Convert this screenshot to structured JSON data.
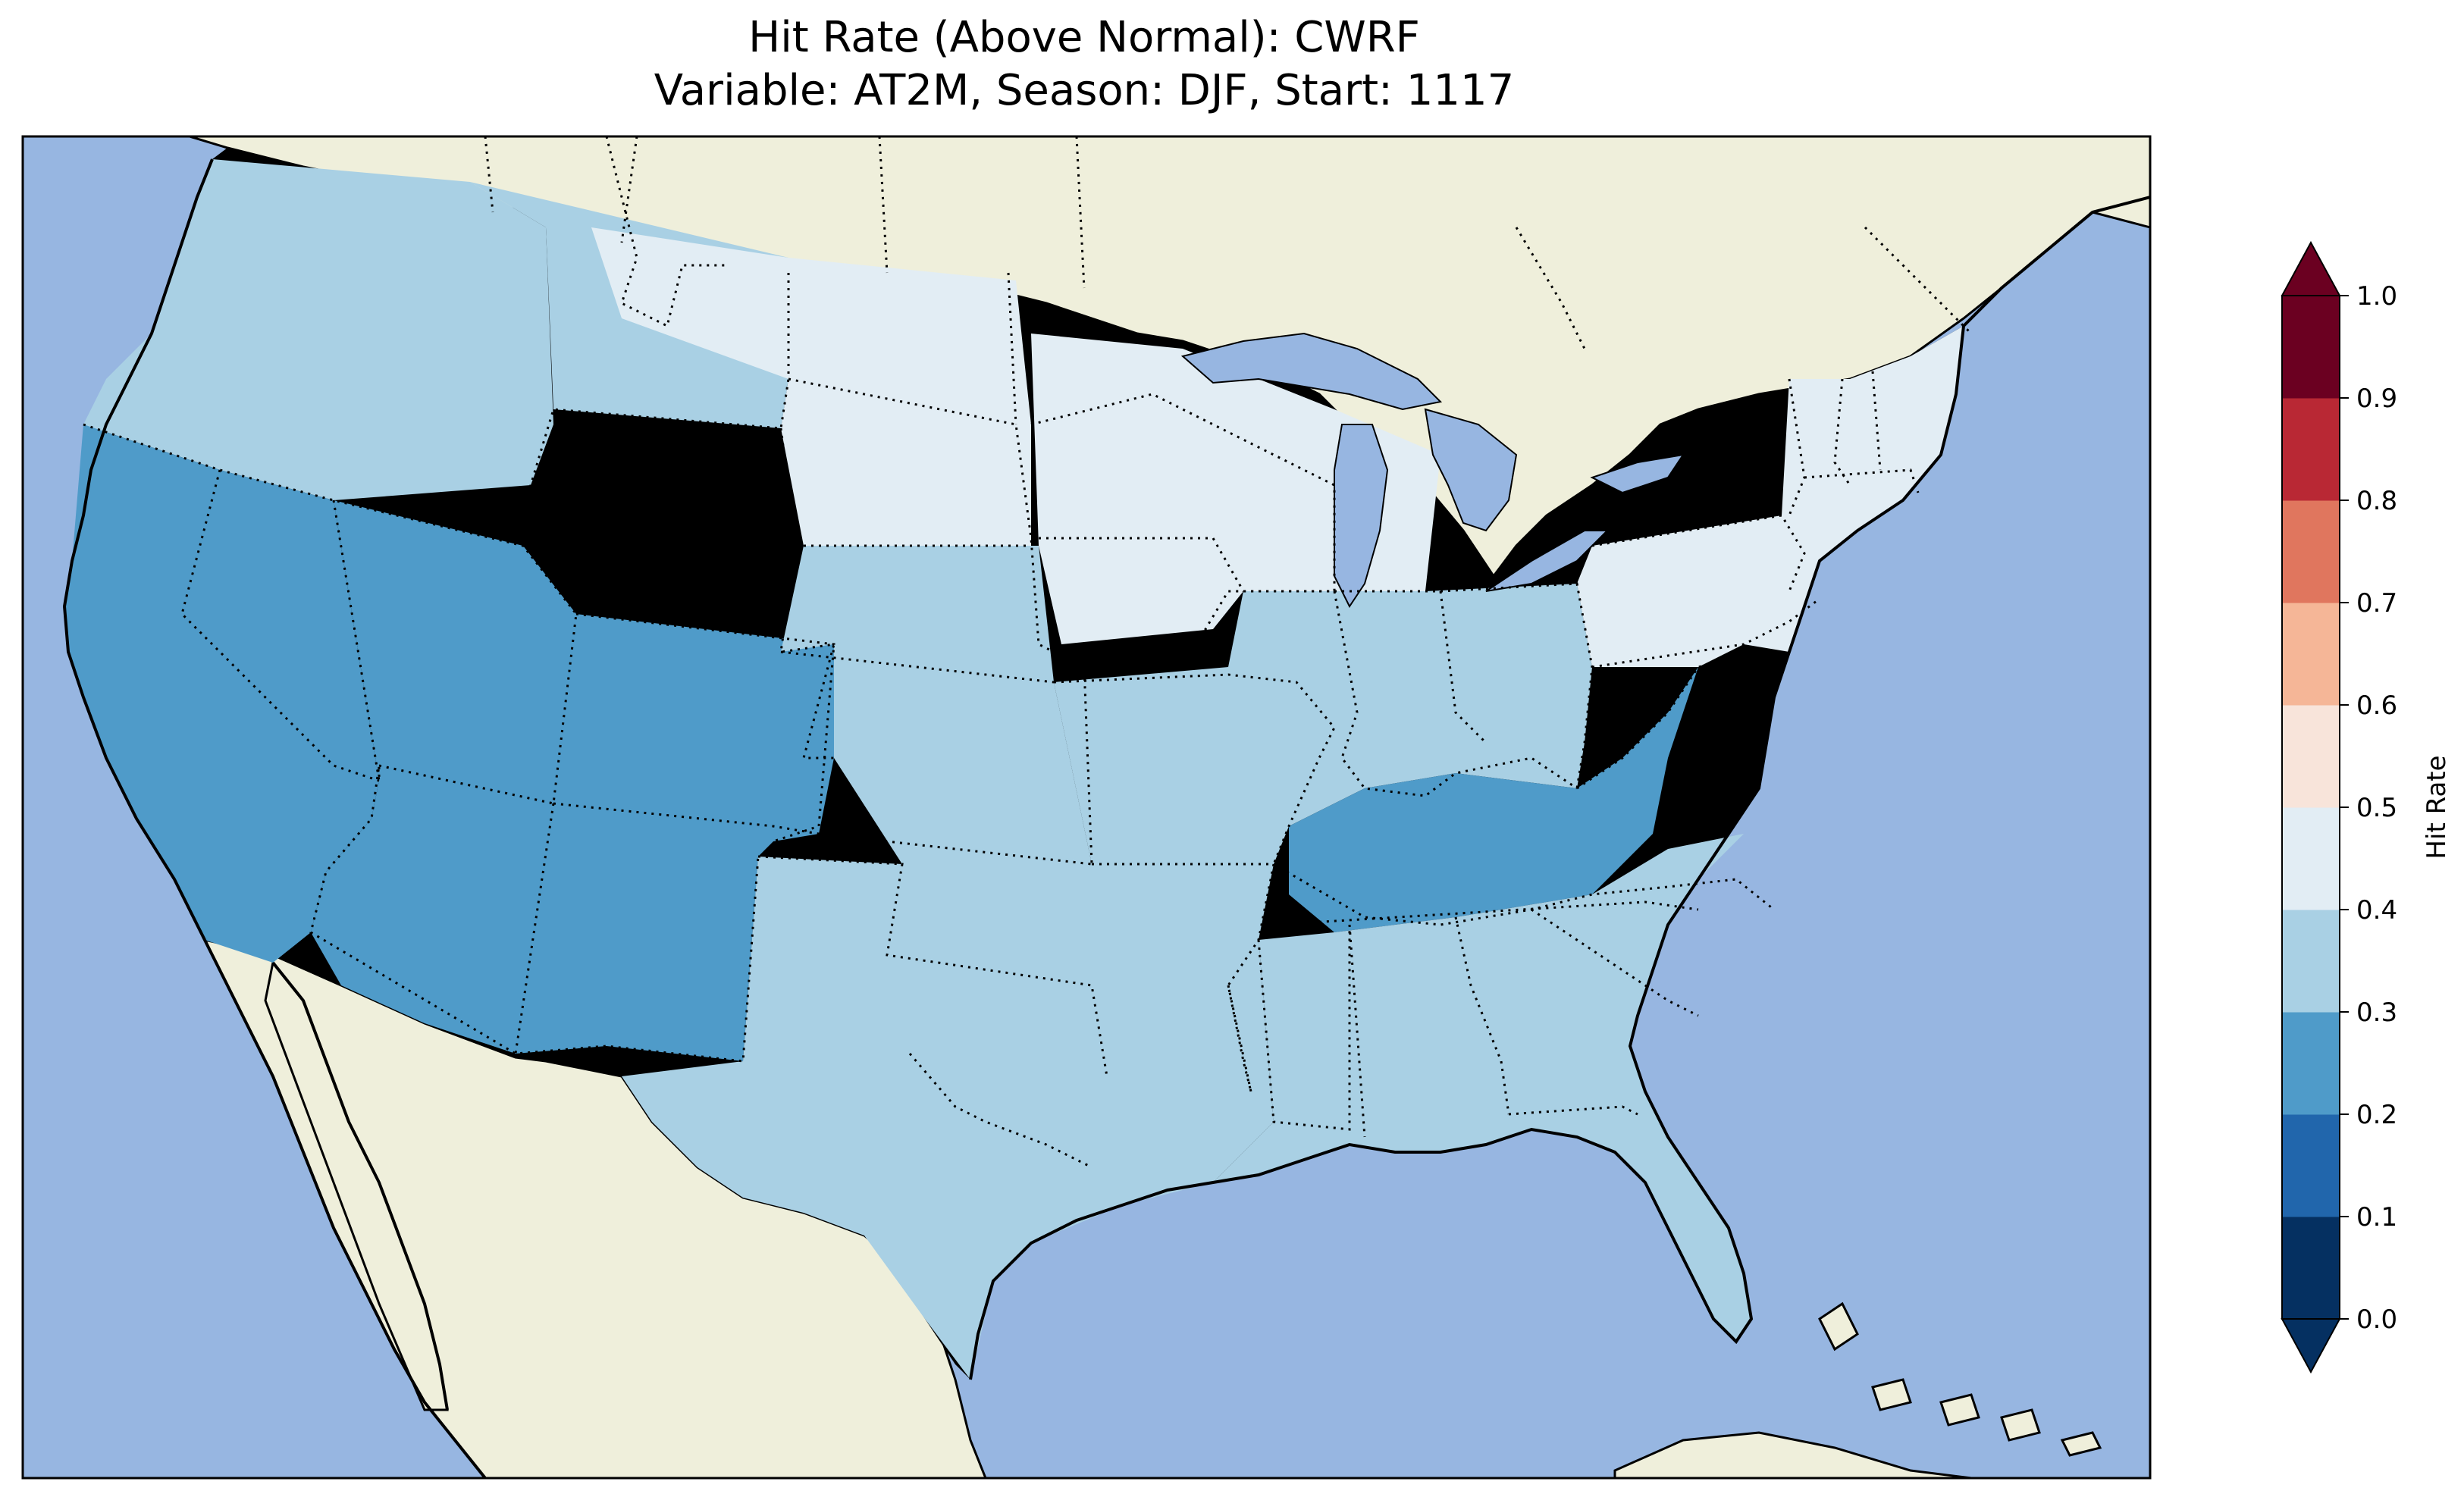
{
  "title": {
    "line1": "Hit Rate (Above Normal): CWRF",
    "line2": "Variable: AT2M, Season: DJF, Start: 1117"
  },
  "map": {
    "region": "Continental United States",
    "ocean_color": "#97b6e1",
    "land_color": "#efefdb",
    "lake_color": "#97b6e1",
    "border_style": "dotted state lines, solid coastlines"
  },
  "colorbar": {
    "label": "Hit Rate",
    "ticks": [
      "0.0",
      "0.1",
      "0.2",
      "0.3",
      "0.4",
      "0.5",
      "0.6",
      "0.7",
      "0.8",
      "0.9",
      "1.0"
    ],
    "colors": [
      "#053061",
      "#2166ac",
      "#4393c3",
      "#92c5de",
      "#d1e5f0",
      "#fddbc7",
      "#f4a582",
      "#d6604d",
      "#b2182b",
      "#67001f"
    ],
    "bins": [
      {
        "range": [
          0.0,
          0.1
        ],
        "color": "#053061"
      },
      {
        "range": [
          0.1,
          0.2
        ],
        "color": "#2166ac"
      },
      {
        "range": [
          0.2,
          0.3
        ],
        "color": "#4f9bc9"
      },
      {
        "range": [
          0.3,
          0.4
        ],
        "color": "#a9d0e4"
      },
      {
        "range": [
          0.4,
          0.5
        ],
        "color": "#e2edf4"
      },
      {
        "range": [
          0.5,
          0.6
        ],
        "color": "#f8e4da"
      },
      {
        "range": [
          0.6,
          0.7
        ],
        "color": "#f5b697"
      },
      {
        "range": [
          0.7,
          0.8
        ],
        "color": "#e0765e"
      },
      {
        "range": [
          0.8,
          0.9
        ],
        "color": "#b92834"
      },
      {
        "range": [
          0.9,
          1.0
        ],
        "color": "#6b0021"
      }
    ],
    "extend": "both"
  },
  "regions": [
    {
      "name": "Pacific Northwest",
      "value_bin": "0.3-0.4"
    },
    {
      "name": "Northern Rockies",
      "value_bin": "0.3-0.4"
    },
    {
      "name": "Northern Plains",
      "value_bin": "0.4-0.5"
    },
    {
      "name": "Upper Midwest",
      "value_bin": "0.4-0.5"
    },
    {
      "name": "California / Great Basin",
      "value_bin": "0.2-0.3"
    },
    {
      "name": "Southwest / Four Corners",
      "value_bin": "0.2-0.3"
    },
    {
      "name": "Central Plains",
      "value_bin": "0.3-0.4"
    },
    {
      "name": "Southern Plains",
      "value_bin": "0.3-0.4"
    },
    {
      "name": "Ohio Valley",
      "value_bin": "0.3-0.4"
    },
    {
      "name": "Appalachians",
      "value_bin": "0.2-0.3"
    },
    {
      "name": "Southeast",
      "value_bin": "0.3-0.4"
    },
    {
      "name": "Northeast",
      "value_bin": "0.4-0.5"
    }
  ]
}
